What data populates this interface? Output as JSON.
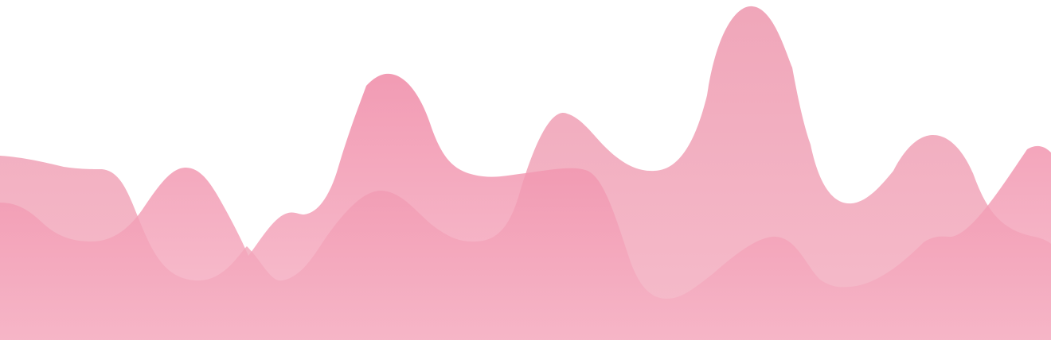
{
  "colors": {
    "background": "#ffffff",
    "wave_back_top": "#ee9ab0",
    "wave_back_bottom": "#f4b3c4",
    "wave_front_top": "#ef85a3",
    "wave_front_bottom": "#f6b4c6"
  }
}
